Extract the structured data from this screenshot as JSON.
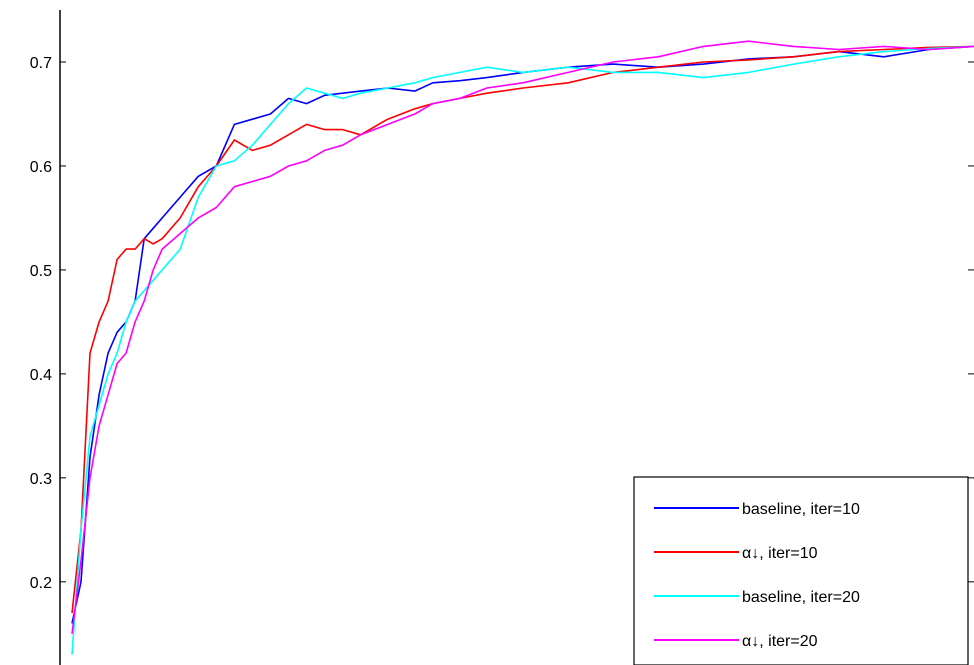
{
  "chart_data": {
    "type": "line",
    "title": "",
    "xlabel": "",
    "ylabel": "",
    "ylim": [
      0.12,
      0.75
    ],
    "xlim": [
      0,
      100
    ],
    "grid": false,
    "legend_position": "bottom-right",
    "yticks": [
      "0.2",
      "0.3",
      "0.4",
      "0.5",
      "0.6",
      "0.7"
    ],
    "yticks_values": [
      0.2,
      0.3,
      0.4,
      0.5,
      0.6,
      0.7
    ],
    "series": [
      {
        "name": "baseline, iter=10",
        "color": "#0000ff",
        "x": [
          0,
          1,
          2,
          3,
          4,
          5,
          6,
          7,
          8,
          9,
          10,
          12,
          14,
          16,
          18,
          20,
          22,
          24,
          26,
          28,
          30,
          32,
          35,
          38,
          40,
          43,
          46,
          50,
          55,
          60,
          65,
          70,
          75,
          80,
          85,
          90,
          95,
          100
        ],
        "values": [
          0.16,
          0.2,
          0.32,
          0.38,
          0.42,
          0.44,
          0.45,
          0.47,
          0.53,
          0.54,
          0.55,
          0.57,
          0.59,
          0.6,
          0.64,
          0.645,
          0.65,
          0.665,
          0.66,
          0.668,
          0.67,
          0.672,
          0.675,
          0.672,
          0.68,
          0.682,
          0.685,
          0.69,
          0.695,
          0.698,
          0.695,
          0.698,
          0.703,
          0.705,
          0.71,
          0.705,
          0.712,
          0.715
        ]
      },
      {
        "name": "α↓, iter=10",
        "color": "#ff0000",
        "x": [
          0,
          1,
          2,
          3,
          4,
          5,
          6,
          7,
          8,
          9,
          10,
          12,
          14,
          16,
          18,
          20,
          22,
          24,
          26,
          28,
          30,
          32,
          35,
          38,
          40,
          43,
          46,
          50,
          55,
          60,
          65,
          70,
          75,
          80,
          85,
          90,
          95,
          100
        ],
        "values": [
          0.17,
          0.25,
          0.42,
          0.45,
          0.47,
          0.51,
          0.52,
          0.52,
          0.53,
          0.525,
          0.53,
          0.55,
          0.58,
          0.6,
          0.625,
          0.615,
          0.62,
          0.63,
          0.64,
          0.635,
          0.635,
          0.63,
          0.645,
          0.655,
          0.66,
          0.665,
          0.67,
          0.675,
          0.68,
          0.69,
          0.695,
          0.7,
          0.702,
          0.705,
          0.71,
          0.712,
          0.714,
          0.715
        ]
      },
      {
        "name": "baseline, iter=20",
        "color": "#00ffff",
        "x": [
          0,
          1,
          2,
          3,
          4,
          5,
          6,
          7,
          8,
          9,
          10,
          12,
          14,
          16,
          18,
          20,
          22,
          24,
          26,
          28,
          30,
          32,
          35,
          38,
          40,
          43,
          46,
          50,
          55,
          60,
          65,
          70,
          75,
          80,
          85,
          90,
          95,
          100
        ],
        "values": [
          0.13,
          0.25,
          0.34,
          0.37,
          0.4,
          0.42,
          0.45,
          0.47,
          0.48,
          0.49,
          0.5,
          0.52,
          0.57,
          0.6,
          0.605,
          0.62,
          0.64,
          0.66,
          0.675,
          0.67,
          0.665,
          0.67,
          0.675,
          0.68,
          0.685,
          0.69,
          0.695,
          0.69,
          0.695,
          0.69,
          0.69,
          0.685,
          0.69,
          0.698,
          0.705,
          0.71,
          0.713,
          0.715
        ]
      },
      {
        "name": "α↓, iter=20",
        "color": "#ff00ff",
        "x": [
          0,
          1,
          2,
          3,
          4,
          5,
          6,
          7,
          8,
          9,
          10,
          12,
          14,
          16,
          18,
          20,
          22,
          24,
          26,
          28,
          30,
          32,
          35,
          38,
          40,
          43,
          46,
          50,
          55,
          60,
          65,
          70,
          75,
          80,
          85,
          90,
          95,
          100
        ],
        "values": [
          0.15,
          0.22,
          0.3,
          0.35,
          0.38,
          0.41,
          0.42,
          0.45,
          0.47,
          0.5,
          0.52,
          0.535,
          0.55,
          0.56,
          0.58,
          0.585,
          0.59,
          0.6,
          0.605,
          0.615,
          0.62,
          0.63,
          0.64,
          0.65,
          0.66,
          0.665,
          0.675,
          0.68,
          0.69,
          0.7,
          0.705,
          0.715,
          0.72,
          0.715,
          0.712,
          0.715,
          0.712,
          0.715
        ]
      }
    ]
  }
}
